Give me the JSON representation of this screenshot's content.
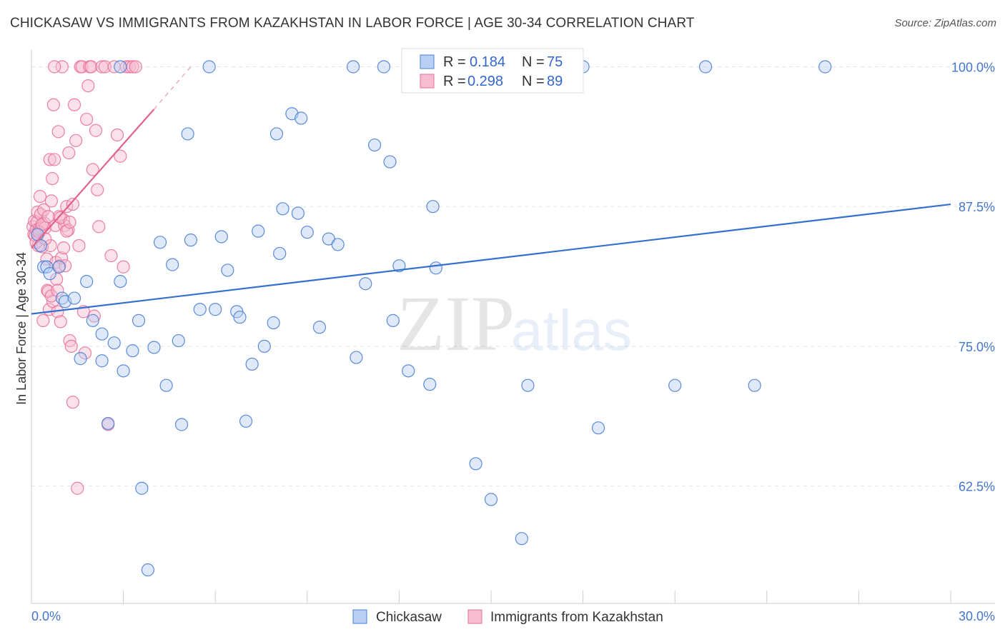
{
  "title": "CHICKASAW VS IMMIGRANTS FROM KAZAKHSTAN IN LABOR FORCE | AGE 30-34 CORRELATION CHART",
  "source": "Source: ZipAtlas.com",
  "watermark": {
    "zip": "ZIP",
    "atlas": "atlas"
  },
  "colors": {
    "blue": "#4a7fd4",
    "blue_fill": "#b9cff3",
    "pink": "#e8729a",
    "pink_fill": "#f6bcd0",
    "grid": "#dddddd",
    "tick_text": "#4477cc"
  },
  "chart_data": {
    "type": "scatter",
    "title": "CHICKASAW VS IMMIGRANTS FROM KAZAKHSTAN IN LABOR FORCE | AGE 30-34 CORRELATION CHART",
    "xlabel": "",
    "ylabel": "In Labor Force | Age 30-34",
    "xlim": [
      0,
      30
    ],
    "ylim": [
      52,
      101.5
    ],
    "x_tick_labels": [
      "0.0%",
      "30.0%"
    ],
    "y_ticks": [
      62.5,
      75.0,
      87.5,
      100.0
    ],
    "y_tick_labels": [
      "62.5%",
      "75.0%",
      "87.5%",
      "100.0%"
    ],
    "legend": {
      "r_label": "R =",
      "n_label": "N =",
      "entries": [
        {
          "name": "Chickasaw",
          "r": "0.184",
          "n": "75"
        },
        {
          "name": "Immigrants from Kazakhstan",
          "r": "0.298",
          "n": "89"
        }
      ]
    },
    "series": [
      {
        "name": "Chickasaw",
        "color": "#4a7fd4",
        "trendline": {
          "x": [
            0,
            30
          ],
          "y": [
            77.9,
            87.7
          ]
        },
        "points": [
          [
            0.2,
            85.0
          ],
          [
            0.3,
            84.0
          ],
          [
            0.4,
            82.1
          ],
          [
            0.5,
            82.1
          ],
          [
            0.6,
            81.5
          ],
          [
            0.9,
            82.1
          ],
          [
            1.0,
            79.3
          ],
          [
            1.1,
            79.0
          ],
          [
            1.4,
            79.3
          ],
          [
            1.6,
            73.9
          ],
          [
            1.8,
            80.8
          ],
          [
            2.0,
            77.3
          ],
          [
            2.3,
            76.1
          ],
          [
            2.3,
            73.7
          ],
          [
            2.5,
            68.1
          ],
          [
            2.7,
            75.3
          ],
          [
            2.9,
            80.8
          ],
          [
            3.0,
            72.8
          ],
          [
            3.3,
            74.6
          ],
          [
            3.5,
            77.3
          ],
          [
            3.6,
            62.3
          ],
          [
            3.8,
            55.0
          ],
          [
            4.0,
            74.9
          ],
          [
            4.2,
            84.3
          ],
          [
            4.4,
            71.5
          ],
          [
            4.6,
            82.3
          ],
          [
            4.8,
            75.5
          ],
          [
            4.9,
            68.0
          ],
          [
            5.1,
            94.0
          ],
          [
            5.2,
            84.5
          ],
          [
            5.5,
            78.3
          ],
          [
            5.8,
            100.0
          ],
          [
            6.0,
            78.3
          ],
          [
            6.2,
            84.8
          ],
          [
            6.4,
            81.8
          ],
          [
            6.7,
            78.1
          ],
          [
            6.8,
            77.6
          ],
          [
            7.0,
            68.3
          ],
          [
            7.2,
            73.4
          ],
          [
            7.4,
            85.3
          ],
          [
            7.6,
            75.0
          ],
          [
            7.9,
            77.1
          ],
          [
            8.0,
            94.0
          ],
          [
            8.1,
            83.3
          ],
          [
            8.2,
            87.3
          ],
          [
            8.5,
            95.8
          ],
          [
            8.7,
            86.9
          ],
          [
            8.8,
            95.4
          ],
          [
            9.0,
            85.2
          ],
          [
            9.4,
            76.7
          ],
          [
            9.7,
            84.6
          ],
          [
            10.0,
            84.1
          ],
          [
            10.5,
            100.0
          ],
          [
            10.6,
            74.0
          ],
          [
            10.9,
            80.6
          ],
          [
            11.2,
            93.0
          ],
          [
            11.5,
            100.0
          ],
          [
            11.7,
            91.5
          ],
          [
            11.8,
            77.3
          ],
          [
            12.0,
            82.2
          ],
          [
            12.3,
            72.8
          ],
          [
            13.0,
            71.6
          ],
          [
            13.1,
            87.5
          ],
          [
            13.2,
            82.0
          ],
          [
            14.5,
            64.5
          ],
          [
            15.0,
            61.3
          ],
          [
            16.0,
            57.8
          ],
          [
            16.2,
            71.5
          ],
          [
            18.0,
            100.0
          ],
          [
            18.5,
            67.7
          ],
          [
            21.0,
            71.5
          ],
          [
            22.0,
            100.0
          ],
          [
            23.6,
            71.5
          ],
          [
            25.9,
            100.0
          ],
          [
            2.9,
            100.0
          ]
        ]
      },
      {
        "name": "Immigrants from Kazakhstan",
        "color": "#e8729a",
        "trendline": {
          "x": [
            0,
            4.0
          ],
          "y": [
            83.8,
            96.2
          ]
        },
        "trendline_dashed": {
          "x": [
            4.0,
            5.2
          ],
          "y": [
            96.2,
            100.0
          ]
        },
        "points": [
          [
            0.05,
            85.7
          ],
          [
            0.08,
            85.0
          ],
          [
            0.1,
            86.2
          ],
          [
            0.12,
            84.9
          ],
          [
            0.15,
            85.4
          ],
          [
            0.18,
            86.1
          ],
          [
            0.2,
            87.0
          ],
          [
            0.22,
            84.0
          ],
          [
            0.25,
            85.5
          ],
          [
            0.28,
            88.4
          ],
          [
            0.3,
            86.8
          ],
          [
            0.32,
            85.6
          ],
          [
            0.35,
            83.9
          ],
          [
            0.38,
            77.3
          ],
          [
            0.4,
            87.2
          ],
          [
            0.42,
            86.0
          ],
          [
            0.45,
            85.6
          ],
          [
            0.5,
            82.8
          ],
          [
            0.52,
            80.0
          ],
          [
            0.55,
            79.9
          ],
          [
            0.58,
            78.3
          ],
          [
            0.6,
            91.7
          ],
          [
            0.62,
            84.0
          ],
          [
            0.65,
            88.0
          ],
          [
            0.68,
            90.0
          ],
          [
            0.7,
            79.0
          ],
          [
            0.72,
            96.6
          ],
          [
            0.75,
            91.7
          ],
          [
            0.78,
            85.8
          ],
          [
            0.8,
            82.5
          ],
          [
            0.82,
            81.0
          ],
          [
            0.85,
            78.1
          ],
          [
            0.88,
            94.2
          ],
          [
            0.9,
            86.6
          ],
          [
            0.92,
            82.2
          ],
          [
            0.95,
            77.2
          ],
          [
            0.98,
            82.9
          ],
          [
            1.0,
            100.0
          ],
          [
            1.05,
            86.3
          ],
          [
            1.08,
            85.8
          ],
          [
            1.1,
            82.2
          ],
          [
            1.15,
            87.5
          ],
          [
            1.2,
            85.4
          ],
          [
            1.22,
            92.3
          ],
          [
            1.25,
            75.5
          ],
          [
            1.3,
            75.0
          ],
          [
            1.35,
            70.0
          ],
          [
            1.4,
            96.6
          ],
          [
            1.45,
            93.4
          ],
          [
            1.5,
            62.3
          ],
          [
            1.55,
            84.0
          ],
          [
            1.6,
            100.0
          ],
          [
            1.65,
            100.0
          ],
          [
            1.7,
            78.1
          ],
          [
            1.75,
            74.4
          ],
          [
            1.8,
            95.3
          ],
          [
            1.85,
            98.3
          ],
          [
            1.9,
            100.0
          ],
          [
            1.95,
            100.0
          ],
          [
            2.0,
            90.8
          ],
          [
            2.05,
            77.7
          ],
          [
            2.1,
            94.3
          ],
          [
            2.15,
            89.0
          ],
          [
            2.2,
            85.7
          ],
          [
            2.3,
            100.0
          ],
          [
            2.4,
            100.0
          ],
          [
            2.5,
            68.0
          ],
          [
            2.6,
            83.1
          ],
          [
            2.7,
            100.0
          ],
          [
            2.8,
            93.9
          ],
          [
            2.9,
            92.0
          ],
          [
            3.0,
            82.1
          ],
          [
            3.1,
            100.0
          ],
          [
            3.2,
            100.0
          ],
          [
            3.3,
            100.0
          ],
          [
            3.4,
            100.0
          ],
          [
            0.15,
            84.3
          ],
          [
            0.25,
            85.2
          ],
          [
            0.35,
            85.9
          ],
          [
            0.45,
            84.6
          ],
          [
            0.55,
            86.6
          ],
          [
            0.65,
            79.5
          ],
          [
            0.75,
            100.0
          ],
          [
            0.85,
            80.0
          ],
          [
            0.95,
            86.5
          ],
          [
            1.05,
            83.8
          ],
          [
            1.15,
            85.3
          ],
          [
            1.25,
            86.1
          ],
          [
            1.35,
            87.7
          ]
        ]
      }
    ]
  }
}
